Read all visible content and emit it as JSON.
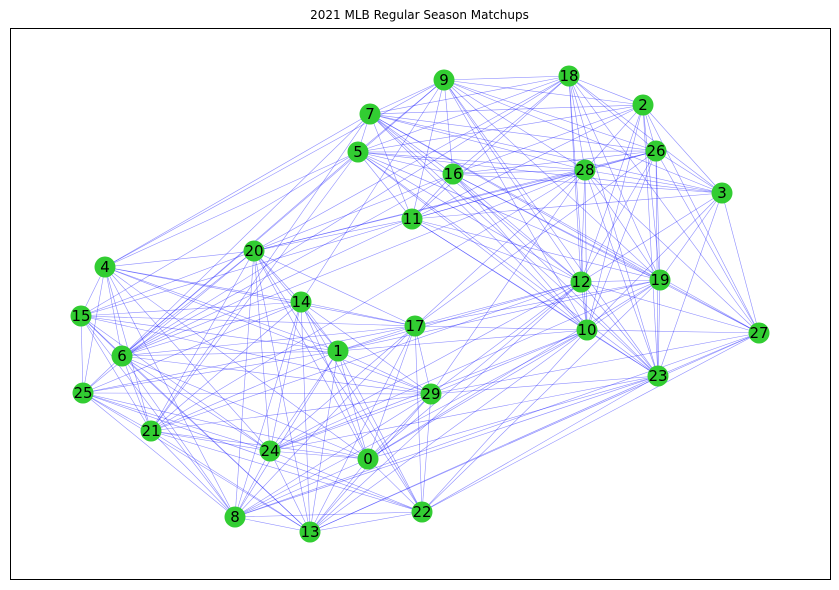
{
  "chart_data": {
    "type": "network",
    "title": "2021 MLB Regular Season Matchups",
    "node_color": "#32cd32",
    "edge_color": "#0000ff",
    "nodes": [
      {
        "id": 0,
        "label": "0"
      },
      {
        "id": 1,
        "label": "1"
      },
      {
        "id": 2,
        "label": "2"
      },
      {
        "id": 3,
        "label": "3"
      },
      {
        "id": 4,
        "label": "4"
      },
      {
        "id": 5,
        "label": "5"
      },
      {
        "id": 6,
        "label": "6"
      },
      {
        "id": 7,
        "label": "7"
      },
      {
        "id": 8,
        "label": "8"
      },
      {
        "id": 9,
        "label": "9"
      },
      {
        "id": 10,
        "label": "10"
      },
      {
        "id": 11,
        "label": "11"
      },
      {
        "id": 12,
        "label": "12"
      },
      {
        "id": 13,
        "label": "13"
      },
      {
        "id": 14,
        "label": "14"
      },
      {
        "id": 15,
        "label": "15"
      },
      {
        "id": 16,
        "label": "16"
      },
      {
        "id": 17,
        "label": "17"
      },
      {
        "id": 18,
        "label": "18"
      },
      {
        "id": 19,
        "label": "19"
      },
      {
        "id": 20,
        "label": "20"
      },
      {
        "id": 21,
        "label": "21"
      },
      {
        "id": 22,
        "label": "22"
      },
      {
        "id": 23,
        "label": "23"
      },
      {
        "id": 24,
        "label": "24"
      },
      {
        "id": 25,
        "label": "25"
      },
      {
        "id": 26,
        "label": "26"
      },
      {
        "id": 27,
        "label": "27"
      },
      {
        "id": 28,
        "label": "28"
      },
      {
        "id": 29,
        "label": "29"
      }
    ],
    "edges": [
      [
        4,
        15
      ],
      [
        4,
        6
      ],
      [
        4,
        25
      ],
      [
        4,
        21
      ],
      [
        4,
        20
      ],
      [
        4,
        14
      ],
      [
        4,
        1
      ],
      [
        4,
        24
      ],
      [
        4,
        8
      ],
      [
        4,
        7
      ],
      [
        4,
        5
      ],
      [
        4,
        9
      ],
      [
        4,
        17
      ],
      [
        4,
        29
      ],
      [
        4,
        0
      ],
      [
        15,
        6
      ],
      [
        15,
        25
      ],
      [
        15,
        21
      ],
      [
        15,
        20
      ],
      [
        15,
        14
      ],
      [
        15,
        1
      ],
      [
        15,
        24
      ],
      [
        15,
        8
      ],
      [
        15,
        13
      ],
      [
        15,
        17
      ],
      [
        15,
        29
      ],
      [
        15,
        11
      ],
      [
        15,
        5
      ],
      [
        6,
        25
      ],
      [
        6,
        21
      ],
      [
        6,
        20
      ],
      [
        6,
        14
      ],
      [
        6,
        1
      ],
      [
        6,
        24
      ],
      [
        6,
        8
      ],
      [
        6,
        13
      ],
      [
        6,
        7
      ],
      [
        6,
        9
      ],
      [
        6,
        5
      ],
      [
        6,
        11
      ],
      [
        6,
        16
      ],
      [
        6,
        17
      ],
      [
        6,
        29
      ],
      [
        6,
        0
      ],
      [
        6,
        28
      ],
      [
        6,
        18
      ],
      [
        25,
        21
      ],
      [
        25,
        20
      ],
      [
        25,
        14
      ],
      [
        25,
        1
      ],
      [
        25,
        24
      ],
      [
        25,
        8
      ],
      [
        25,
        13
      ],
      [
        25,
        17
      ],
      [
        25,
        29
      ],
      [
        25,
        0
      ],
      [
        25,
        22
      ],
      [
        21,
        20
      ],
      [
        21,
        14
      ],
      [
        21,
        1
      ],
      [
        21,
        24
      ],
      [
        21,
        8
      ],
      [
        21,
        13
      ],
      [
        21,
        7
      ],
      [
        21,
        5
      ],
      [
        21,
        28
      ],
      [
        21,
        29
      ],
      [
        21,
        0
      ],
      [
        21,
        22
      ],
      [
        21,
        12
      ],
      [
        20,
        14
      ],
      [
        20,
        1
      ],
      [
        20,
        24
      ],
      [
        20,
        8
      ],
      [
        20,
        13
      ],
      [
        20,
        11
      ],
      [
        20,
        16
      ],
      [
        20,
        28
      ],
      [
        20,
        26
      ],
      [
        20,
        18
      ],
      [
        20,
        17
      ],
      [
        20,
        0
      ],
      [
        20,
        22
      ],
      [
        14,
        1
      ],
      [
        14,
        24
      ],
      [
        14,
        8
      ],
      [
        14,
        13
      ],
      [
        14,
        17
      ],
      [
        14,
        29
      ],
      [
        14,
        0
      ],
      [
        14,
        22
      ],
      [
        14,
        9
      ],
      [
        1,
        24
      ],
      [
        1,
        8
      ],
      [
        1,
        13
      ],
      [
        1,
        17
      ],
      [
        1,
        29
      ],
      [
        1,
        0
      ],
      [
        1,
        22
      ],
      [
        1,
        10
      ],
      [
        1,
        12
      ],
      [
        1,
        19
      ],
      [
        24,
        8
      ],
      [
        24,
        13
      ],
      [
        24,
        0
      ],
      [
        24,
        22
      ],
      [
        24,
        29
      ],
      [
        24,
        17
      ],
      [
        24,
        10
      ],
      [
        24,
        12
      ],
      [
        24,
        19
      ],
      [
        24,
        23
      ],
      [
        8,
        13
      ],
      [
        8,
        0
      ],
      [
        8,
        22
      ],
      [
        8,
        29
      ],
      [
        8,
        17
      ],
      [
        8,
        10
      ],
      [
        8,
        23
      ],
      [
        8,
        27
      ],
      [
        13,
        0
      ],
      [
        13,
        22
      ],
      [
        13,
        29
      ],
      [
        13,
        17
      ],
      [
        13,
        10
      ],
      [
        13,
        23
      ],
      [
        13,
        27
      ],
      [
        13,
        12
      ],
      [
        0,
        22
      ],
      [
        0,
        29
      ],
      [
        0,
        17
      ],
      [
        0,
        10
      ],
      [
        0,
        23
      ],
      [
        0,
        19
      ],
      [
        0,
        12
      ],
      [
        22,
        29
      ],
      [
        22,
        17
      ],
      [
        22,
        10
      ],
      [
        22,
        23
      ],
      [
        22,
        27
      ],
      [
        22,
        19
      ],
      [
        29,
        17
      ],
      [
        29,
        10
      ],
      [
        29,
        12
      ],
      [
        29,
        28
      ],
      [
        29,
        23
      ],
      [
        29,
        27
      ],
      [
        17,
        12
      ],
      [
        17,
        10
      ],
      [
        17,
        19
      ],
      [
        17,
        26
      ],
      [
        17,
        28
      ],
      [
        11,
        16
      ],
      [
        11,
        28
      ],
      [
        11,
        26
      ],
      [
        11,
        3
      ],
      [
        11,
        12
      ],
      [
        11,
        19
      ],
      [
        11,
        10
      ],
      [
        11,
        23
      ],
      [
        11,
        7
      ],
      [
        11,
        9
      ],
      [
        11,
        5
      ],
      [
        11,
        18
      ],
      [
        11,
        2
      ],
      [
        5,
        7
      ],
      [
        5,
        9
      ],
      [
        5,
        16
      ],
      [
        5,
        28
      ],
      [
        5,
        26
      ],
      [
        5,
        2
      ],
      [
        5,
        18
      ],
      [
        5,
        3
      ],
      [
        5,
        12
      ],
      [
        5,
        19
      ],
      [
        5,
        10
      ],
      [
        5,
        23
      ],
      [
        7,
        9
      ],
      [
        7,
        16
      ],
      [
        7,
        28
      ],
      [
        7,
        26
      ],
      [
        7,
        2
      ],
      [
        7,
        18
      ],
      [
        7,
        3
      ],
      [
        7,
        12
      ],
      [
        7,
        19
      ],
      [
        7,
        10
      ],
      [
        7,
        23
      ],
      [
        7,
        27
      ],
      [
        9,
        18
      ],
      [
        9,
        2
      ],
      [
        9,
        16
      ],
      [
        9,
        28
      ],
      [
        9,
        26
      ],
      [
        9,
        3
      ],
      [
        9,
        12
      ],
      [
        9,
        19
      ],
      [
        9,
        10
      ],
      [
        9,
        23
      ],
      [
        16,
        18
      ],
      [
        16,
        2
      ],
      [
        16,
        28
      ],
      [
        16,
        26
      ],
      [
        16,
        3
      ],
      [
        16,
        12
      ],
      [
        16,
        19
      ],
      [
        16,
        10
      ],
      [
        16,
        27
      ],
      [
        16,
        23
      ],
      [
        18,
        2
      ],
      [
        18,
        28
      ],
      [
        18,
        26
      ],
      [
        18,
        3
      ],
      [
        18,
        12
      ],
      [
        18,
        19
      ],
      [
        18,
        10
      ],
      [
        18,
        27
      ],
      [
        18,
        23
      ],
      [
        2,
        28
      ],
      [
        2,
        26
      ],
      [
        2,
        3
      ],
      [
        2,
        12
      ],
      [
        2,
        19
      ],
      [
        2,
        10
      ],
      [
        2,
        27
      ],
      [
        2,
        23
      ],
      [
        28,
        26
      ],
      [
        28,
        3
      ],
      [
        28,
        12
      ],
      [
        28,
        19
      ],
      [
        28,
        10
      ],
      [
        28,
        27
      ],
      [
        28,
        23
      ],
      [
        26,
        3
      ],
      [
        26,
        12
      ],
      [
        26,
        19
      ],
      [
        26,
        10
      ],
      [
        26,
        27
      ],
      [
        26,
        23
      ],
      [
        3,
        12
      ],
      [
        3,
        19
      ],
      [
        3,
        10
      ],
      [
        3,
        27
      ],
      [
        3,
        23
      ],
      [
        12,
        19
      ],
      [
        12,
        10
      ],
      [
        12,
        27
      ],
      [
        12,
        23
      ],
      [
        19,
        10
      ],
      [
        19,
        27
      ],
      [
        19,
        23
      ],
      [
        10,
        27
      ],
      [
        10,
        23
      ],
      [
        23,
        27
      ]
    ]
  }
}
